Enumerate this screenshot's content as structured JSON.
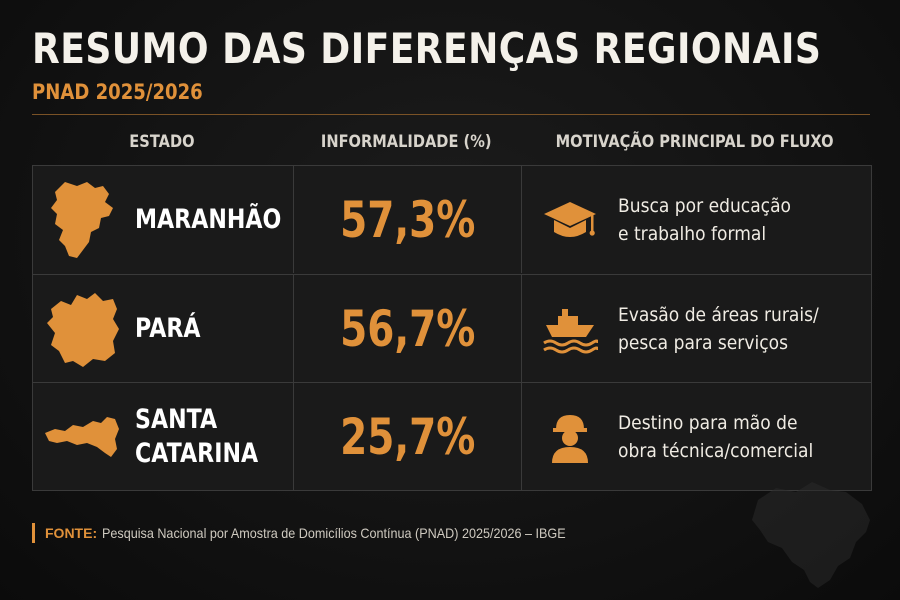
{
  "header": {
    "title": "RESUMO DAS DIFERENÇAS REGIONAIS",
    "subtitle": "PNAD 2025/2026"
  },
  "columns": [
    "ESTADO",
    "INFORMALIDADE (%)",
    "MOTIVAÇÃO PRINCIPAL DO FLUXO"
  ],
  "rows": [
    {
      "state": "MARANHÃO",
      "informality": "57,3%",
      "motivation": "Busca por educação\ne trabalho formal",
      "icon": "graduation-cap-icon",
      "map": "maranhao-map-icon"
    },
    {
      "state": "PARÁ",
      "informality": "56,7%",
      "motivation": "Evasão de áreas rurais/\npesca para serviços",
      "icon": "boat-icon",
      "map": "para-map-icon"
    },
    {
      "state": "SANTA\nCATARINA",
      "informality": "25,7%",
      "motivation": "Destino para mão de\nobra técnica/comercial",
      "icon": "worker-hardhat-icon",
      "map": "santa-catarina-map-icon"
    }
  ],
  "source": {
    "label": "FONTE:",
    "text": "Pesquisa Nacional por Amostra de Domicílios Contínua (PNAD) 2025/2026 – IBGE"
  },
  "colors": {
    "background": "#121212",
    "accent": "#e0913a",
    "text": "#f4f1ea",
    "cell": "#1a1a1a",
    "border": "#3a3a3a"
  }
}
